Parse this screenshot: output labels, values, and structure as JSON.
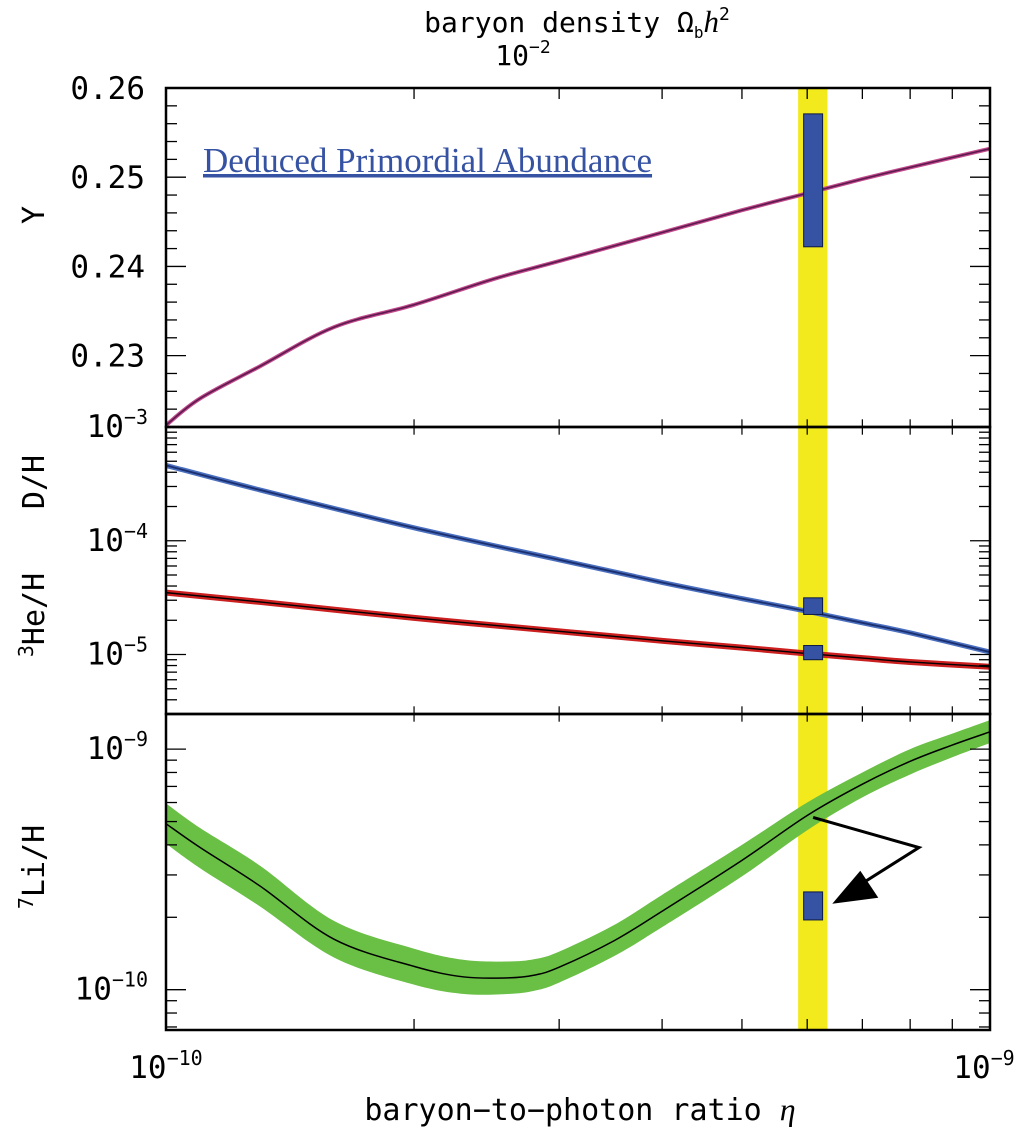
{
  "chart_data": {
    "type": "line",
    "top_axis": {
      "label": "baryon density Ω",
      "label_sub": "b",
      "label_h": "h",
      "label_sup": "2",
      "tick_label": "10",
      "tick_label_sup": "−2"
    },
    "x_axis": {
      "label": "baryon−to−photon ratio",
      "symbol": "η",
      "scale": "log",
      "xlim": [
        1e-10,
        1e-09
      ],
      "ticks": [
        {
          "value": 1e-10,
          "base": "10",
          "exp": "−10"
        },
        {
          "value": 1e-09,
          "base": "10",
          "exp": "−9"
        }
      ]
    },
    "annotation": "Deduced Primordial Abundance",
    "wmap_band": {
      "eta_min": 5.85e-10,
      "eta_max": 6.35e-10,
      "color": "#f2ea1c"
    },
    "colors": {
      "he4": "#5b1a4e",
      "deuterium": "#1b2f6e",
      "he3": "#cc1f1f",
      "li7_band": "#6abf45",
      "observation": "#3652a3",
      "annotation": "#3652a3"
    },
    "panels": [
      {
        "id": "he4",
        "ylabel": "Y",
        "scale": "linear",
        "ylim": [
          0.222,
          0.26
        ],
        "ticks": [
          {
            "value": 0.26,
            "label": "0.26"
          },
          {
            "value": 0.25,
            "label": "0.25"
          },
          {
            "value": 0.24,
            "label": "0.24"
          },
          {
            "value": 0.23,
            "label": "0.23"
          }
        ],
        "series": [
          {
            "key": "he4",
            "x": [
              1e-10,
              1.1e-10,
              1.3e-10,
              1.6e-10,
              2e-10,
              2.5e-10,
              3e-10,
              4e-10,
              5e-10,
              6e-10,
              7e-10,
              8e-10,
              1e-09
            ],
            "y": [
              0.2222,
              0.2252,
              0.2288,
              0.2332,
              0.2357,
              0.2386,
              0.2406,
              0.2438,
              0.2463,
              0.2482,
              0.2498,
              0.2511,
              0.2532
            ]
          }
        ],
        "observations": [
          {
            "x": 6.1e-10,
            "low": 0.2422,
            "high": 0.2571
          }
        ]
      },
      {
        "id": "d_he3",
        "ylabel": "D/H",
        "ylabel2": "He/H",
        "ylabel2_sup": "3",
        "scale": "log",
        "ylim": [
          3e-06,
          0.001
        ],
        "ticks": [
          {
            "value": 0.001,
            "base": "10",
            "exp": "−3"
          },
          {
            "value": 0.0001,
            "base": "10",
            "exp": "−4"
          },
          {
            "value": 1e-05,
            "base": "10",
            "exp": "−5"
          }
        ],
        "series": [
          {
            "key": "deuterium",
            "x": [
              1e-10,
              1.3e-10,
              2e-10,
              3e-10,
              4e-10,
              5e-10,
              6e-10,
              7e-10,
              8e-10,
              1e-09
            ],
            "y": [
              0.00046,
              0.00028,
              0.00013,
              6.8e-05,
              4.3e-05,
              3.1e-05,
              2.4e-05,
              1.9e-05,
              1.55e-05,
              1.05e-05
            ]
          },
          {
            "key": "he3",
            "x": [
              1e-10,
              1.3e-10,
              2e-10,
              3e-10,
              4e-10,
              5e-10,
              6e-10,
              7e-10,
              8e-10,
              1e-09
            ],
            "y": [
              3.5e-05,
              2.9e-05,
              2.1e-05,
              1.6e-05,
              1.32e-05,
              1.15e-05,
              1.02e-05,
              9.3e-06,
              8.6e-06,
              7.8e-06
            ]
          }
        ],
        "observations": [
          {
            "x": 6.1e-10,
            "low": 2.25e-05,
            "high": 3.15e-05
          },
          {
            "x": 6.1e-10,
            "low": 9e-06,
            "high": 1.2e-05
          }
        ]
      },
      {
        "id": "li7",
        "ylabel": "Li/H",
        "ylabel_sup": "7",
        "scale": "log",
        "ylim": [
          6.8e-11,
          1.4e-09
        ],
        "ticks": [
          {
            "value": 1e-09,
            "base": "10",
            "exp": "−9"
          },
          {
            "value": 1e-10,
            "base": "10",
            "exp": "−10"
          }
        ],
        "series": [
          {
            "key": "li7",
            "x": [
              1e-10,
              1.1e-10,
              1.3e-10,
              1.6e-10,
              2e-10,
              2.3e-10,
              2.6e-10,
              2.8e-10,
              3e-10,
              3.5e-10,
              4e-10,
              5e-10,
              6e-10,
              7e-10,
              8e-10,
              9e-10,
              1e-09
            ],
            "y": [
              4.9e-10,
              3.9e-10,
              2.7e-10,
              1.62e-10,
              1.25e-10,
              1.13e-10,
              1.12e-10,
              1.15e-10,
              1.24e-10,
              1.6e-10,
              2.12e-10,
              3.45e-10,
              5.3e-10,
              7.15e-10,
              8.9e-10,
              1.04e-09,
              1.18e-09
            ],
            "band_low": [
              4.05e-10,
              3.2e-10,
              2.22e-10,
              1.36e-10,
              1.05e-10,
              9.6e-11,
              9.6e-11,
              9.9e-11,
              1.07e-10,
              1.38e-10,
              1.82e-10,
              2.96e-10,
              4.6e-10,
              6.3e-10,
              7.85e-10,
              9.25e-10,
              1.06e-09
            ],
            "band_high": [
              5.95e-10,
              4.7e-10,
              3.28e-10,
              1.93e-10,
              1.48e-10,
              1.33e-10,
              1.31e-10,
              1.34e-10,
              1.44e-10,
              1.86e-10,
              2.48e-10,
              4e-10,
              6e-10,
              8e-10,
              1e-09,
              1.16e-09,
              1.32e-09
            ]
          }
        ],
        "observations": [
          {
            "x": 6.1e-10,
            "low": 1.95e-10,
            "high": 2.55e-10
          }
        ],
        "arrow": {
          "from_x": 6.1e-10,
          "from_y": 5.2e-10,
          "via_x": 8.2e-10,
          "via_y": 3.9e-10,
          "to_x": 6.4e-10,
          "to_y": 2.3e-10
        }
      }
    ]
  }
}
